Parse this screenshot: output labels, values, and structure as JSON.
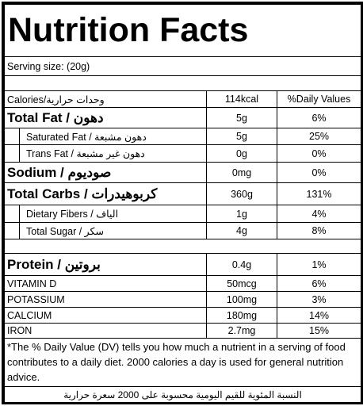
{
  "title": "Nutrition Facts",
  "serving": "Serving size:  (20g)",
  "header": [
    "Calories/وحدات حرارية",
    "114kcal",
    "%Daily Values"
  ],
  "rows": [
    [
      "Total Fat / دهون",
      "5g",
      "6%"
    ],
    [
      "Saturated Fat / دهون مشبعة",
      "5g",
      "25%"
    ],
    [
      "Trans Fat / دهون غير مشبعة",
      "0g",
      "0%"
    ],
    [
      "Sodium / صوديوم",
      "0mg",
      "0%"
    ],
    [
      "Total Carbs / كربوهيدرات",
      "360g",
      "131%"
    ],
    [
      "Dietary Fibers / الياف",
      "1g",
      "4%"
    ],
    [
      "Total Sugar / سكر",
      "4g",
      "8%"
    ],
    [
      "Protein / بروتين",
      "0.4g",
      "1%"
    ],
    [
      "VITAMIN D",
      "50mcg",
      "6%"
    ],
    [
      "POTASSIUM",
      "100mg",
      "3%"
    ],
    [
      "CALCIUM",
      "180mg",
      "14%"
    ],
    [
      "IRON",
      "2.7mg",
      "15%"
    ]
  ],
  "footnote": "*The % Daily Value (DV) tells you how much a nutrient in a serving of food contributes to a daily diet. 2000 calories a day is used for general nutrition advice.",
  "footnote_ar": "النسبة المئوية للقيم اليومية محسوبة على 2000 سعرة حرارية"
}
